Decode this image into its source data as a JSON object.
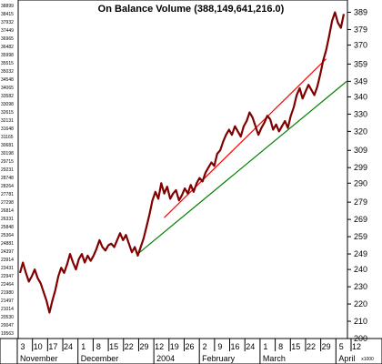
{
  "chart_data": {
    "type": "line",
    "title": "On Balance Volume (388,149,641,216.0)",
    "series": [
      {
        "values": [
          238,
          244,
          238,
          233,
          236,
          240,
          235,
          232,
          227,
          222,
          215,
          222,
          228,
          236,
          241,
          238,
          243,
          249,
          244,
          240,
          246,
          249,
          244,
          248,
          245,
          248,
          252,
          257,
          253,
          251,
          254,
          255,
          253,
          257,
          261,
          257,
          260,
          255,
          250,
          253,
          248,
          253,
          258,
          265,
          272,
          280,
          285,
          281,
          290,
          284,
          288,
          281,
          284,
          286,
          280,
          283,
          287,
          284,
          289,
          285,
          290,
          293,
          291,
          296,
          299,
          302,
          300,
          307,
          309,
          314,
          318,
          321,
          318,
          323,
          320,
          317,
          323,
          326,
          331,
          328,
          323,
          318,
          322,
          325,
          329,
          327,
          321,
          324,
          320,
          323,
          326,
          322,
          329,
          334,
          341,
          345,
          339,
          343,
          347,
          344,
          341,
          346,
          353,
          361,
          367,
          375,
          384,
          389,
          383,
          380,
          388
        ]
      }
    ],
    "x_tick_labels": [
      "3",
      "10",
      "17",
      "24",
      "1",
      "8",
      "15",
      "22",
      "29",
      "12",
      "19",
      "26",
      "2",
      "9",
      "16",
      "24",
      "1",
      "8",
      "15",
      "22",
      "29",
      "5",
      "12"
    ],
    "x_group_labels": [
      "November",
      "December",
      "2004",
      "February",
      "March",
      "April"
    ],
    "y_ticks": [
      200,
      210,
      220,
      230,
      240,
      249,
      259,
      269,
      279,
      290,
      299,
      309,
      320,
      330,
      340,
      349,
      359,
      370,
      379,
      389
    ],
    "left_scale_labels": [
      "38899",
      "38415",
      "37932",
      "37449",
      "36965",
      "36482",
      "35998",
      "35515",
      "35032",
      "34548",
      "34065",
      "33582",
      "33098",
      "32615",
      "32131",
      "31648",
      "31165",
      "30681",
      "30198",
      "29715",
      "29231",
      "28748",
      "28264",
      "27781",
      "27298",
      "26814",
      "26331",
      "25848",
      "25364",
      "24881",
      "24397",
      "23914",
      "23431",
      "22947",
      "22464",
      "21980",
      "21497",
      "21014",
      "20530",
      "20047",
      "19563"
    ],
    "y_unit_label": "x1000",
    "ylim": [
      200,
      394
    ],
    "trendlines": [
      {
        "color": "#ff0000",
        "x": [
          49,
          104
        ],
        "y": [
          270,
          362
        ]
      },
      {
        "color": "#008000",
        "x": [
          40,
          111
        ],
        "y": [
          249,
          349
        ]
      }
    ],
    "line_color": "#800000",
    "grid": false
  }
}
